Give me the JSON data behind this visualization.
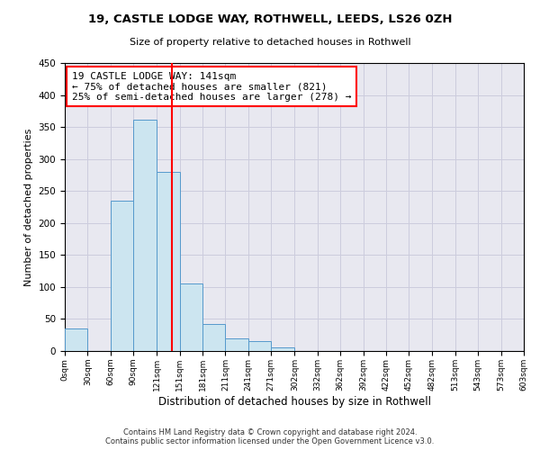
{
  "title": "19, CASTLE LODGE WAY, ROTHWELL, LEEDS, LS26 0ZH",
  "subtitle": "Size of property relative to detached houses in Rothwell",
  "xlabel": "Distribution of detached houses by size in Rothwell",
  "ylabel": "Number of detached properties",
  "bin_edges": [
    0,
    30,
    60,
    90,
    121,
    151,
    181,
    211,
    241,
    271,
    302,
    332,
    362,
    392,
    422,
    452,
    482,
    513,
    543,
    573,
    603
  ],
  "bar_heights": [
    35,
    0,
    235,
    362,
    280,
    105,
    42,
    20,
    15,
    5,
    0,
    0,
    0,
    0,
    0,
    0,
    0,
    0,
    0,
    0
  ],
  "bar_color": "#cce5f0",
  "bar_edge_color": "#5599cc",
  "vline_x": 141,
  "vline_color": "red",
  "annotation_text": "19 CASTLE LODGE WAY: 141sqm\n← 75% of detached houses are smaller (821)\n25% of semi-detached houses are larger (278) →",
  "annotation_box_color": "white",
  "annotation_box_edge_color": "red",
  "ylim": [
    0,
    450
  ],
  "tick_labels": [
    "0sqm",
    "30sqm",
    "60sqm",
    "90sqm",
    "121sqm",
    "151sqm",
    "181sqm",
    "211sqm",
    "241sqm",
    "271sqm",
    "302sqm",
    "332sqm",
    "362sqm",
    "392sqm",
    "422sqm",
    "452sqm",
    "482sqm",
    "513sqm",
    "543sqm",
    "573sqm",
    "603sqm"
  ],
  "footer_line1": "Contains HM Land Registry data © Crown copyright and database right 2024.",
  "footer_line2": "Contains public sector information licensed under the Open Government Licence v3.0.",
  "grid_color": "#ccccdd",
  "background_color": "#e8e8f0"
}
